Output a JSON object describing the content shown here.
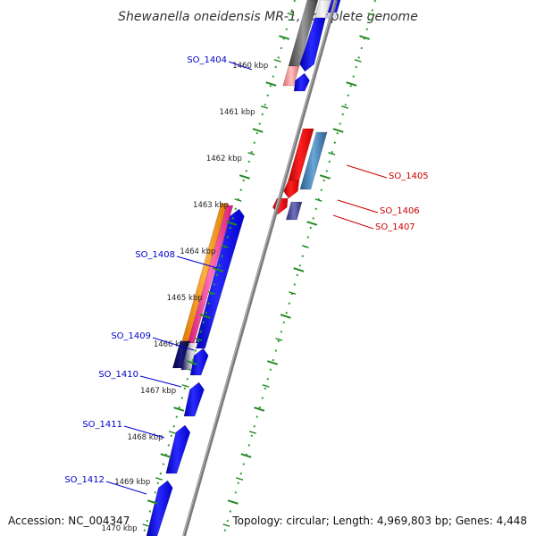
{
  "title": "Shewanella oneidensis MR-1, complete genome",
  "accession": "Accession: NC_004347",
  "topology": "Topology: circular; Length: 4,969,803 bp; Genes: 4,448",
  "colors": {
    "backbone": "#7a7a7a",
    "tick": "#228b22",
    "gene_label_left": "#0000cc",
    "gene_label_right": "#cc0000"
  },
  "ticks": [
    {
      "label": "1460 kbp"
    },
    {
      "label": "1461 kbp"
    },
    {
      "label": "1462 kbp"
    },
    {
      "label": "1463 kbp"
    },
    {
      "label": "1464 kbp"
    },
    {
      "label": "1465 kbp"
    },
    {
      "label": "1466 kbp"
    },
    {
      "label": "1467 kbp"
    },
    {
      "label": "1468 kbp"
    },
    {
      "label": "1469 kbp"
    },
    {
      "label": "1470 kbp"
    }
  ],
  "gene_labels": [
    {
      "label": "SO_1404",
      "side": "left"
    },
    {
      "label": "SO_1405",
      "side": "right"
    },
    {
      "label": "SO_1406",
      "side": "right"
    },
    {
      "label": "SO_1407",
      "side": "right"
    },
    {
      "label": "SO_1408",
      "side": "left"
    },
    {
      "label": "SO_1409",
      "side": "left"
    },
    {
      "label": "SO_1410",
      "side": "left"
    },
    {
      "label": "SO_1411",
      "side": "left"
    },
    {
      "label": "SO_1412",
      "side": "left"
    }
  ]
}
